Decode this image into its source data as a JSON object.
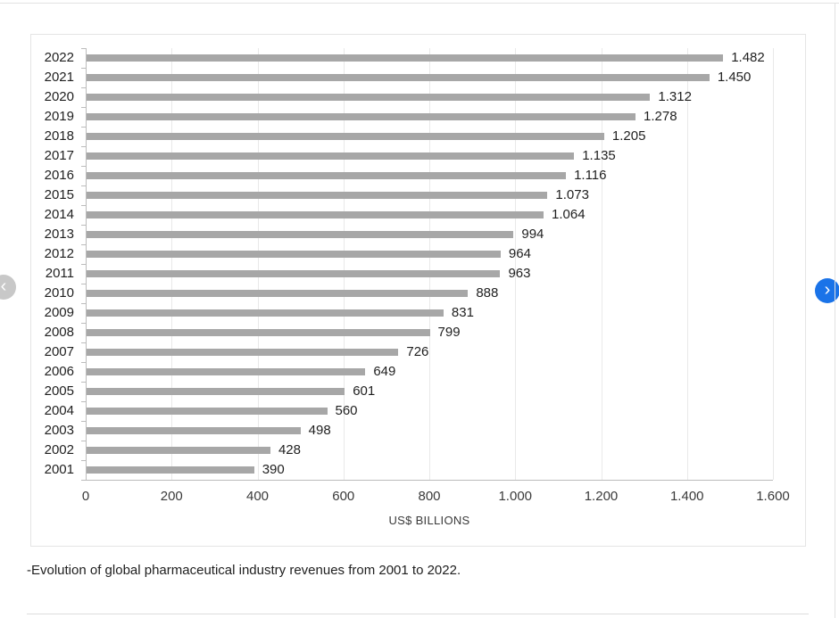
{
  "carousel": {
    "prev_icon": "‹",
    "next_icon": "›"
  },
  "caption": "-Evolution of global pharmaceutical industry revenues from 2001 to 2022.",
  "colors": {
    "bar": "#a7a7a7",
    "nav_next_bg": "#1a73e8",
    "nav_prev_bg": "#c8c8c8",
    "axis": "#bcbcbc",
    "gridline": "#e9e9e9"
  },
  "chart_data": {
    "type": "bar",
    "orientation": "horizontal",
    "title": "",
    "xlabel": "US$ BILLIONS",
    "ylabel": "",
    "xlim": [
      0,
      1600
    ],
    "grid": "vertical",
    "legend": "none",
    "tick_values": [
      0,
      200,
      400,
      600,
      800,
      1000,
      1200,
      1400,
      1600
    ],
    "tick_labels": [
      "0",
      "200",
      "400",
      "600",
      "800",
      "1.000",
      "1.200",
      "1.400",
      "1.600"
    ],
    "categories": [
      "2022",
      "2021",
      "2020",
      "2019",
      "2018",
      "2017",
      "2016",
      "2015",
      "2014",
      "2013",
      "2012",
      "2011",
      "2010",
      "2009",
      "2008",
      "2007",
      "2006",
      "2005",
      "2004",
      "2003",
      "2002",
      "2001"
    ],
    "values": [
      1482,
      1450,
      1312,
      1278,
      1205,
      1135,
      1116,
      1073,
      1064,
      994,
      964,
      963,
      888,
      831,
      799,
      726,
      649,
      601,
      560,
      498,
      428,
      390
    ],
    "value_labels": [
      "1.482",
      "1.450",
      "1.312",
      "1.278",
      "1.205",
      "1.135",
      "1.116",
      "1.073",
      "1.064",
      "994",
      "964",
      "963",
      "888",
      "831",
      "799",
      "726",
      "649",
      "601",
      "560",
      "498",
      "428",
      "390"
    ]
  }
}
